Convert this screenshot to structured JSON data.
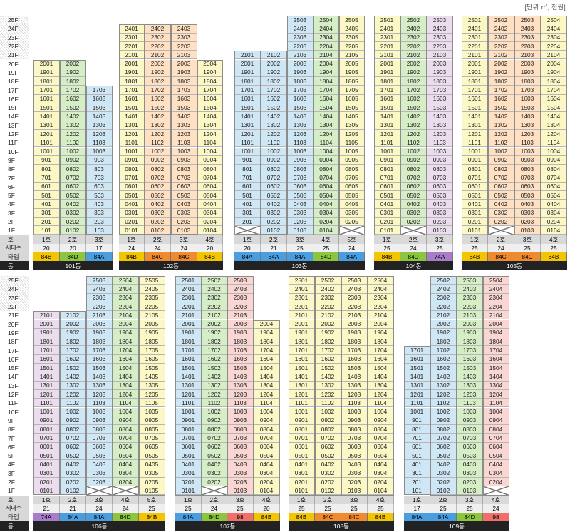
{
  "unit_note": "[단위:㎡, 천원]",
  "row_labels": {
    "ho": "호",
    "count": "세대수",
    "type": "타입",
    "dong": "동"
  },
  "type_colors": {
    "84A": "#4a9ee0",
    "84B": "#f2c500",
    "84C": "#f08a2e",
    "84D": "#8cc63f",
    "74A": "#a77dc7",
    "98": "#ef6f6a"
  },
  "line_colors": {
    "A": "#fbf8c5",
    "B": "#cfe6f5",
    "C": "#d6eec6",
    "D": "#ffe0c2",
    "E": "#ebdcee",
    "F": "#fad6d3"
  },
  "sections": [
    {
      "floor_labels": [
        "25F",
        "24F",
        "23F",
        "22F",
        "21F",
        "20F",
        "19F",
        "18F",
        "17F",
        "16F",
        "15F",
        "14F",
        "13F",
        "12F",
        "11F",
        "10F",
        "9F",
        "8F",
        "7F",
        "6F",
        "5F",
        "4F",
        "3F",
        "2F",
        "1F"
      ],
      "buildings": [
        {
          "dong": "101동",
          "columns": [
            {
              "ho": "1호",
              "count": "20",
              "type": "84B",
              "top": 20,
              "color": "A",
              "fmt": "s"
            },
            {
              "ho": "2호",
              "count": "20",
              "type": "84D",
              "top": 20,
              "color": "C",
              "fmt": "p"
            },
            {
              "ho": "3호",
              "count": "17",
              "type": "84A",
              "top": 17,
              "color": "B",
              "fmt": "s"
            }
          ]
        },
        {
          "dong": "102동",
          "columns": [
            {
              "ho": "1호",
              "count": "24",
              "type": "84B",
              "top": 24,
              "color": "A",
              "fmt": "p"
            },
            {
              "ho": "2호",
              "count": "24",
              "type": "84C",
              "top": 24,
              "color": "D",
              "fmt": "p"
            },
            {
              "ho": "3호",
              "count": "24",
              "type": "84C",
              "top": 24,
              "color": "D",
              "fmt": "p"
            },
            {
              "ho": "4호",
              "count": "20",
              "type": "84B",
              "top": 20,
              "color": "A",
              "fmt": "p"
            }
          ]
        },
        {
          "dong": "103동",
          "columns": [
            {
              "ho": "1호",
              "count": "20",
              "type": "84A",
              "top": 21,
              "bottom": 2,
              "color": "B",
              "fmt": "s"
            },
            {
              "ho": "2호",
              "count": "21",
              "type": "84A",
              "top": 21,
              "color": "B",
              "fmt": "p"
            },
            {
              "ho": "3호",
              "count": "25",
              "type": "84A",
              "top": 25,
              "color": "B",
              "fmt": "p"
            },
            {
              "ho": "4호",
              "count": "25",
              "type": "84D",
              "top": 25,
              "color": "C",
              "fmt": "p"
            },
            {
              "ho": "5호",
              "count": "24",
              "type": "84A",
              "top": 25,
              "bottom": 2,
              "color": "A",
              "fmt": "p"
            }
          ]
        },
        {
          "dong": "104동",
          "columns": [
            {
              "ho": "1호",
              "count": "25",
              "type": "84B",
              "top": 25,
              "color": "A",
              "fmt": "p"
            },
            {
              "ho": "2호",
              "count": "24",
              "type": "84D",
              "top": 25,
              "bottom": 2,
              "color": "C",
              "fmt": "p"
            },
            {
              "ho": "3호",
              "count": "25",
              "type": "74A",
              "top": 25,
              "color": "E",
              "fmt": "p"
            }
          ]
        },
        {
          "dong": "105동",
          "columns": [
            {
              "ho": "1호",
              "count": "25",
              "type": "84B",
              "top": 25,
              "color": "A",
              "fmt": "p"
            },
            {
              "ho": "2호",
              "count": "24",
              "type": "84C",
              "top": 25,
              "bottom": 2,
              "color": "D",
              "fmt": "p"
            },
            {
              "ho": "3호",
              "count": "25",
              "type": "84C",
              "top": 25,
              "color": "D",
              "fmt": "p"
            },
            {
              "ho": "4호",
              "count": "25",
              "type": "84B",
              "top": 25,
              "color": "A",
              "fmt": "p"
            }
          ]
        }
      ]
    },
    {
      "floor_labels": [
        "25F",
        "24F",
        "23F",
        "22F",
        "21F",
        "20F",
        "19F",
        "18F",
        "17F",
        "16F",
        "15F",
        "14F",
        "13F",
        "12F",
        "11F",
        "10F",
        "9F",
        "8F",
        "7F",
        "6F",
        "5F",
        "4F",
        "3F",
        "2F",
        "1F"
      ],
      "buildings": [
        {
          "dong": "106동",
          "columns": [
            {
              "ho": "1호",
              "count": "21",
              "type": "74A",
              "top": 21,
              "color": "E",
              "fmt": "p"
            },
            {
              "ho": "2호",
              "count": "21",
              "type": "84A",
              "top": 21,
              "color": "B",
              "fmt": "p"
            },
            {
              "ho": "3호",
              "count": "24",
              "type": "84A",
              "top": 25,
              "bottom": 2,
              "color": "B",
              "fmt": "p"
            },
            {
              "ho": "4호",
              "count": "24",
              "type": "84D",
              "top": 25,
              "bottom": 2,
              "color": "C",
              "fmt": "p"
            },
            {
              "ho": "5호",
              "count": "25",
              "type": "84B",
              "top": 25,
              "color": "A",
              "fmt": "p"
            }
          ]
        },
        {
          "dong": "107동",
          "columns": [
            {
              "ho": "1호",
              "count": "25",
              "type": "84A",
              "top": 25,
              "color": "B",
              "fmt": "p"
            },
            {
              "ho": "2호",
              "count": "24",
              "type": "84D",
              "top": 25,
              "bottom": 2,
              "color": "C",
              "fmt": "p"
            },
            {
              "ho": "3호",
              "count": "25",
              "type": "98",
              "top": 25,
              "color": "F",
              "fmt": "p"
            },
            {
              "ho": "4호",
              "count": "20",
              "type": "84B",
              "top": 20,
              "color": "A",
              "fmt": "p"
            }
          ]
        },
        {
          "dong": "108동",
          "columns": [
            {
              "ho": "1호",
              "count": "25",
              "type": "84B",
              "top": 25,
              "color": "A",
              "fmt": "p"
            },
            {
              "ho": "2호",
              "count": "25",
              "type": "84C",
              "top": 25,
              "color": "A",
              "fmt": "p"
            },
            {
              "ho": "3호",
              "count": "25",
              "type": "84C",
              "top": 25,
              "color": "A",
              "fmt": "p"
            },
            {
              "ho": "4호",
              "count": "25",
              "type": "84B",
              "top": 25,
              "color": "A",
              "fmt": "p"
            }
          ]
        },
        {
          "dong": "109동",
          "columns": [
            {
              "ho": "1호",
              "count": "17",
              "type": "84A",
              "top": 17,
              "color": "B",
              "fmt": "s"
            },
            {
              "ho": "2호",
              "count": "25",
              "type": "84A",
              "top": 25,
              "color": "B",
              "fmt": "p"
            },
            {
              "ho": "3호",
              "count": "25",
              "type": "84D",
              "top": 25,
              "color": "C",
              "fmt": "p"
            },
            {
              "ho": "4호",
              "count": "24",
              "type": "98",
              "top": 25,
              "bottom": 2,
              "color": "F",
              "fmt": "p"
            }
          ]
        }
      ]
    }
  ]
}
